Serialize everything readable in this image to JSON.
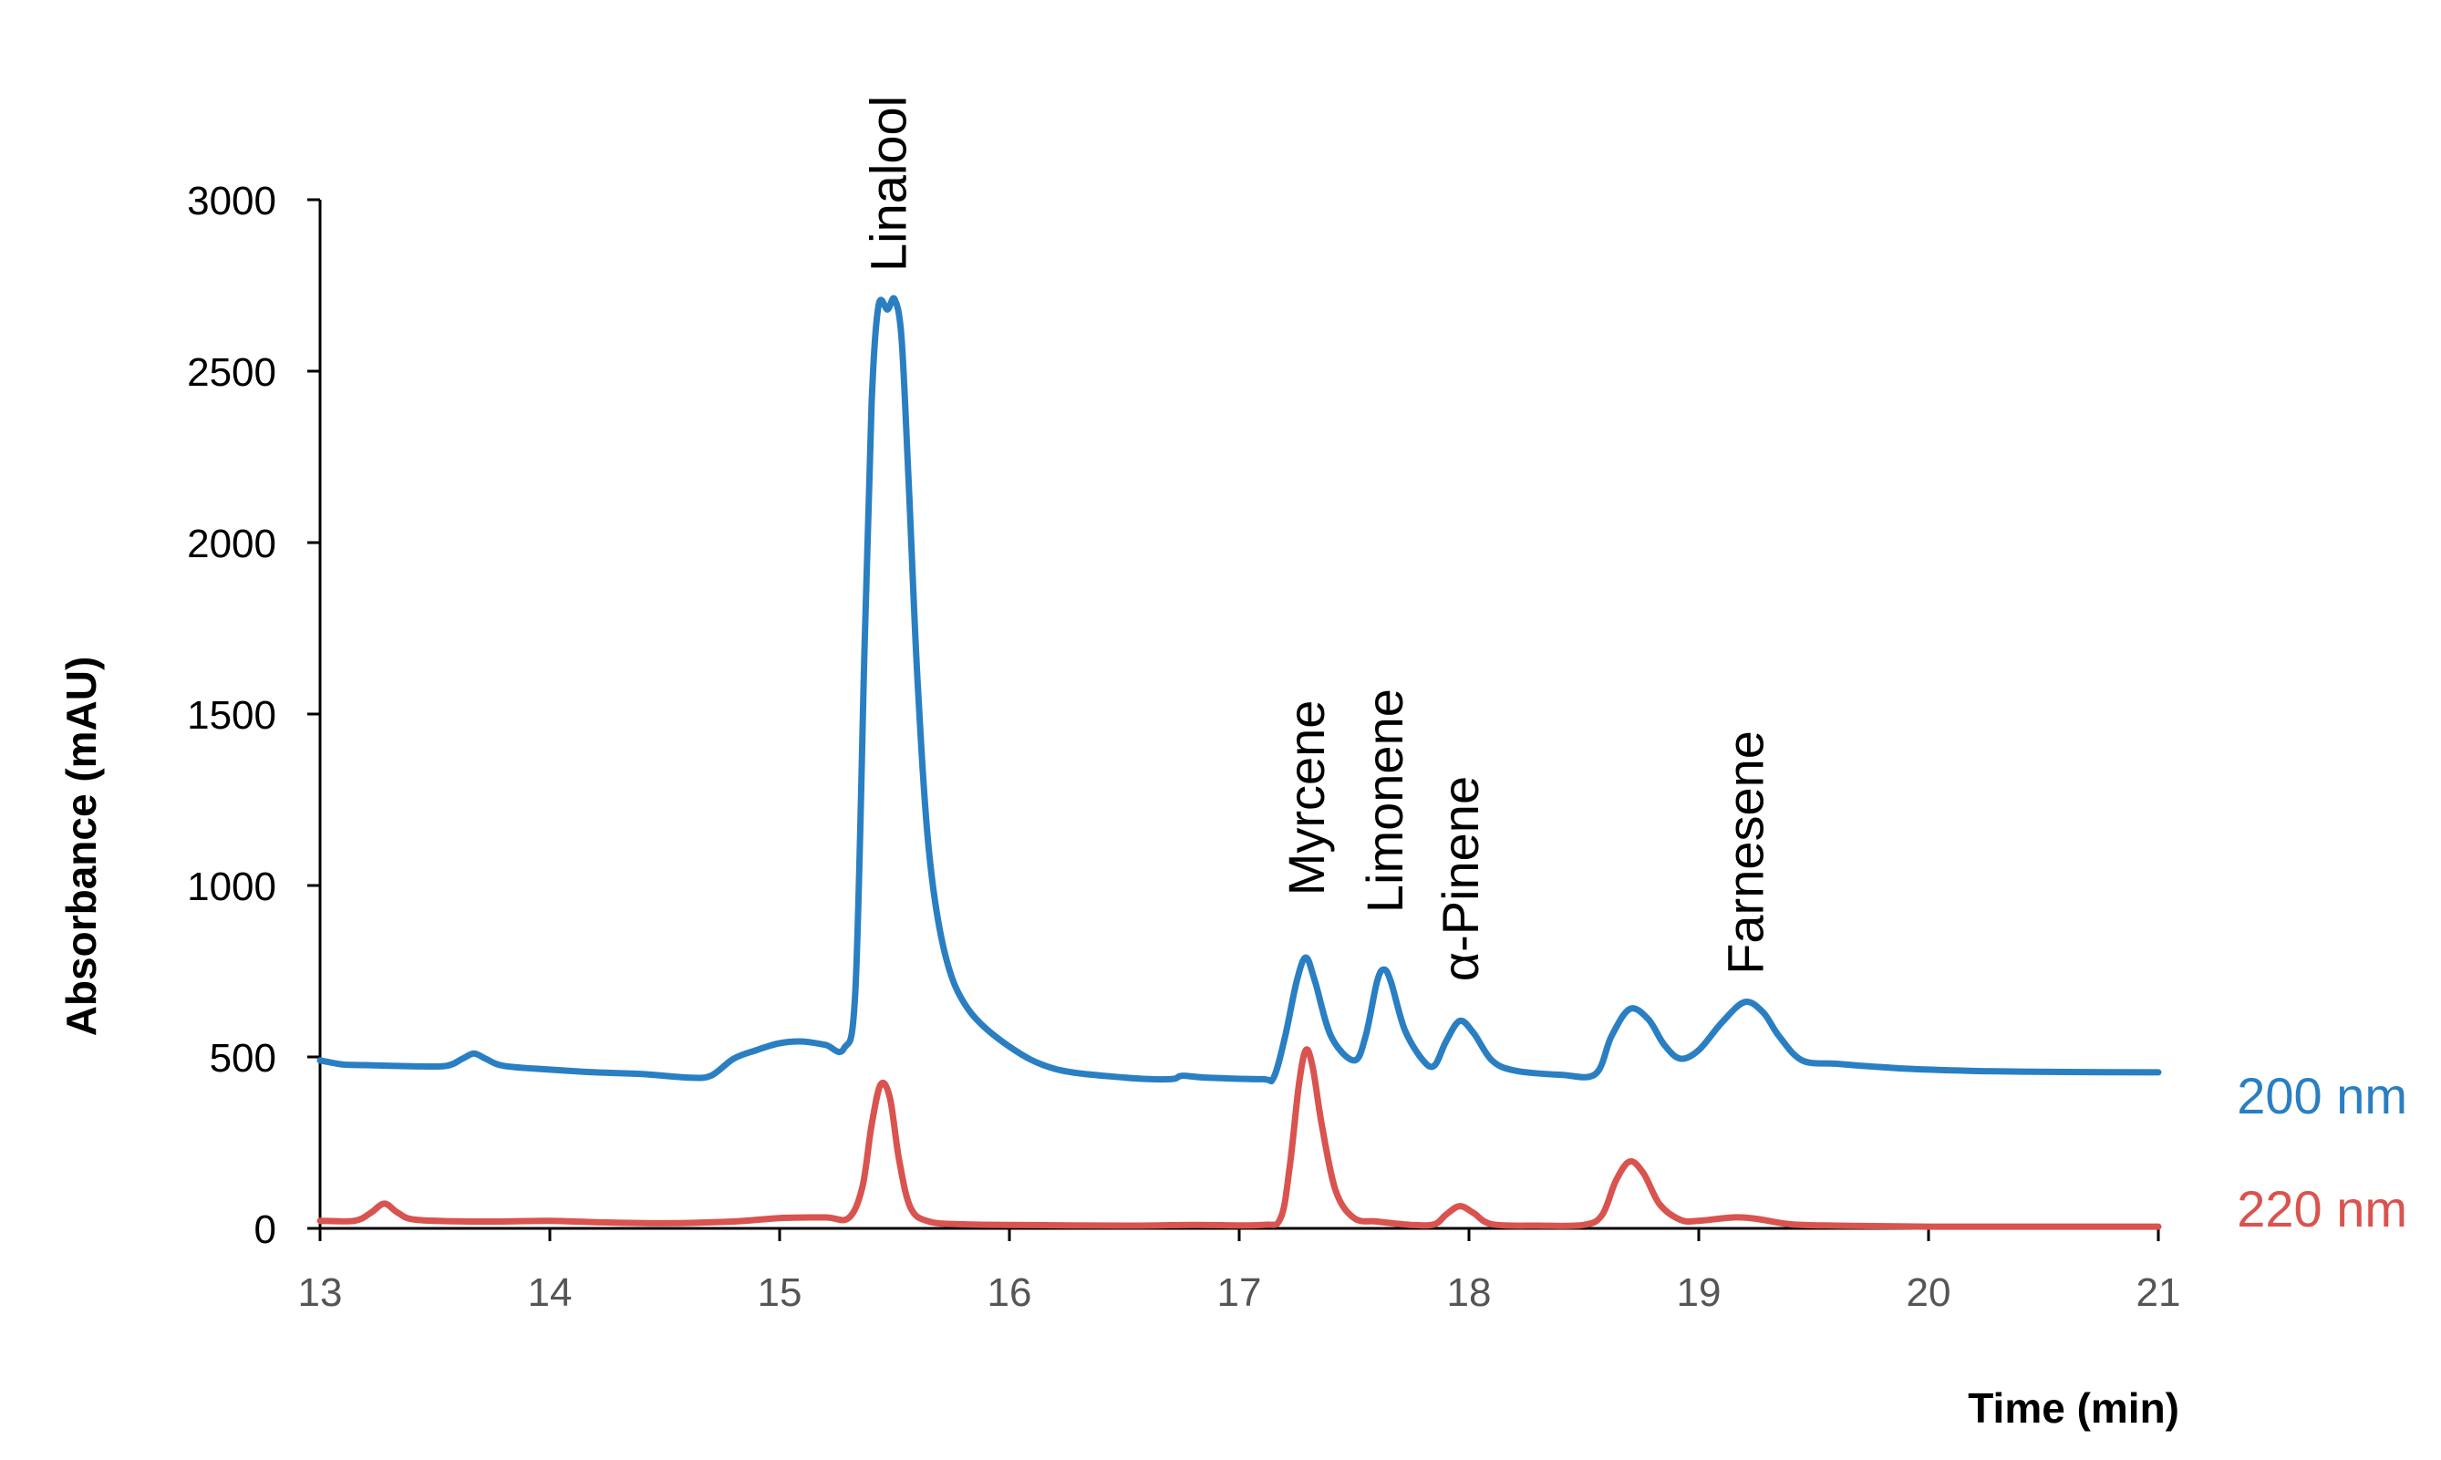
{
  "chart_data": {
    "type": "line",
    "title": "",
    "xlabel": "Time (min)",
    "ylabel": "Absorbance (mAU)",
    "xlim": [
      13,
      21
    ],
    "ylim": [
      0,
      3000
    ],
    "xticks": [
      13,
      14,
      15,
      16,
      17,
      18,
      19,
      20,
      21
    ],
    "yticks": [
      0,
      500,
      1000,
      1500,
      2000,
      2500,
      3000
    ],
    "xtick_labels": [
      "13",
      "14",
      "15",
      "16",
      "17",
      "18",
      "19",
      "20",
      "21"
    ],
    "ytick_labels": [
      "0",
      "500",
      "1000",
      "1500",
      "2000",
      "2500",
      "3000"
    ],
    "grid": false,
    "series": [
      {
        "name": "200 nm",
        "color": "#2a7fc2",
        "points": [
          [
            13.0,
            490
          ],
          [
            13.1,
            478
          ],
          [
            13.2,
            476
          ],
          [
            13.4,
            473
          ],
          [
            13.55,
            474
          ],
          [
            13.62,
            495
          ],
          [
            13.67,
            510
          ],
          [
            13.72,
            495
          ],
          [
            13.8,
            474
          ],
          [
            14.0,
            463
          ],
          [
            14.2,
            455
          ],
          [
            14.4,
            450
          ],
          [
            14.6,
            440
          ],
          [
            14.7,
            445
          ],
          [
            14.8,
            495
          ],
          [
            14.9,
            520
          ],
          [
            15.0,
            540
          ],
          [
            15.1,
            545
          ],
          [
            15.2,
            535
          ],
          [
            15.28,
            525
          ],
          [
            15.33,
            700
          ],
          [
            15.37,
            1700
          ],
          [
            15.4,
            2400
          ],
          [
            15.43,
            2690
          ],
          [
            15.47,
            2680
          ],
          [
            15.5,
            2710
          ],
          [
            15.53,
            2600
          ],
          [
            15.56,
            2200
          ],
          [
            15.6,
            1600
          ],
          [
            15.65,
            1100
          ],
          [
            15.72,
            800
          ],
          [
            15.82,
            640
          ],
          [
            16.0,
            530
          ],
          [
            16.2,
            465
          ],
          [
            16.5,
            440
          ],
          [
            16.7,
            435
          ],
          [
            16.75,
            445
          ],
          [
            16.85,
            440
          ],
          [
            17.1,
            435
          ],
          [
            17.15,
            440
          ],
          [
            17.2,
            560
          ],
          [
            17.25,
            720
          ],
          [
            17.29,
            790
          ],
          [
            17.33,
            720
          ],
          [
            17.4,
            560
          ],
          [
            17.5,
            490
          ],
          [
            17.55,
            560
          ],
          [
            17.6,
            720
          ],
          [
            17.63,
            755
          ],
          [
            17.66,
            720
          ],
          [
            17.72,
            580
          ],
          [
            17.8,
            490
          ],
          [
            17.85,
            475
          ],
          [
            17.9,
            545
          ],
          [
            17.96,
            605
          ],
          [
            18.02,
            570
          ],
          [
            18.1,
            490
          ],
          [
            18.2,
            460
          ],
          [
            18.4,
            448
          ],
          [
            18.55,
            450
          ],
          [
            18.62,
            560
          ],
          [
            18.7,
            640
          ],
          [
            18.78,
            610
          ],
          [
            18.85,
            535
          ],
          [
            18.92,
            495
          ],
          [
            19.0,
            520
          ],
          [
            19.1,
            600
          ],
          [
            19.2,
            660
          ],
          [
            19.28,
            630
          ],
          [
            19.35,
            560
          ],
          [
            19.45,
            490
          ],
          [
            19.6,
            480
          ],
          [
            19.8,
            470
          ],
          [
            20.0,
            463
          ],
          [
            20.3,
            458
          ],
          [
            20.6,
            456
          ],
          [
            21.0,
            455
          ]
        ]
      },
      {
        "name": "220 nm",
        "color": "#d9534f",
        "points": [
          [
            13.0,
            22
          ],
          [
            13.15,
            22
          ],
          [
            13.22,
            45
          ],
          [
            13.28,
            72
          ],
          [
            13.34,
            45
          ],
          [
            13.42,
            25
          ],
          [
            13.7,
            20
          ],
          [
            14.0,
            22
          ],
          [
            14.2,
            18
          ],
          [
            14.5,
            15
          ],
          [
            14.8,
            20
          ],
          [
            15.0,
            30
          ],
          [
            15.2,
            32
          ],
          [
            15.3,
            30
          ],
          [
            15.36,
            120
          ],
          [
            15.4,
            300
          ],
          [
            15.44,
            420
          ],
          [
            15.48,
            380
          ],
          [
            15.52,
            200
          ],
          [
            15.57,
            60
          ],
          [
            15.65,
            20
          ],
          [
            15.8,
            12
          ],
          [
            16.0,
            10
          ],
          [
            16.5,
            8
          ],
          [
            16.8,
            10
          ],
          [
            17.1,
            10
          ],
          [
            17.18,
            30
          ],
          [
            17.22,
            180
          ],
          [
            17.26,
            420
          ],
          [
            17.29,
            520
          ],
          [
            17.32,
            470
          ],
          [
            17.36,
            300
          ],
          [
            17.42,
            110
          ],
          [
            17.5,
            30
          ],
          [
            17.6,
            20
          ],
          [
            17.75,
            10
          ],
          [
            17.85,
            12
          ],
          [
            17.9,
            40
          ],
          [
            17.96,
            65
          ],
          [
            18.02,
            45
          ],
          [
            18.1,
            12
          ],
          [
            18.3,
            8
          ],
          [
            18.5,
            10
          ],
          [
            18.58,
            40
          ],
          [
            18.64,
            140
          ],
          [
            18.7,
            195
          ],
          [
            18.76,
            160
          ],
          [
            18.83,
            70
          ],
          [
            18.92,
            25
          ],
          [
            19.0,
            22
          ],
          [
            19.15,
            32
          ],
          [
            19.25,
            28
          ],
          [
            19.4,
            12
          ],
          [
            19.6,
            8
          ],
          [
            20.0,
            5
          ],
          [
            20.5,
            5
          ],
          [
            21.0,
            5
          ]
        ]
      }
    ],
    "annotations": [
      {
        "text": "Linalool",
        "x": 15.47,
        "y": 2790
      },
      {
        "text": "Myrcene",
        "x": 17.29,
        "y": 970
      },
      {
        "text": "Limonene",
        "x": 17.63,
        "y": 920
      },
      {
        "text": "α-Pinene",
        "x": 17.96,
        "y": 720
      },
      {
        "text": "Farnesene",
        "x": 19.2,
        "y": 740
      }
    ]
  }
}
